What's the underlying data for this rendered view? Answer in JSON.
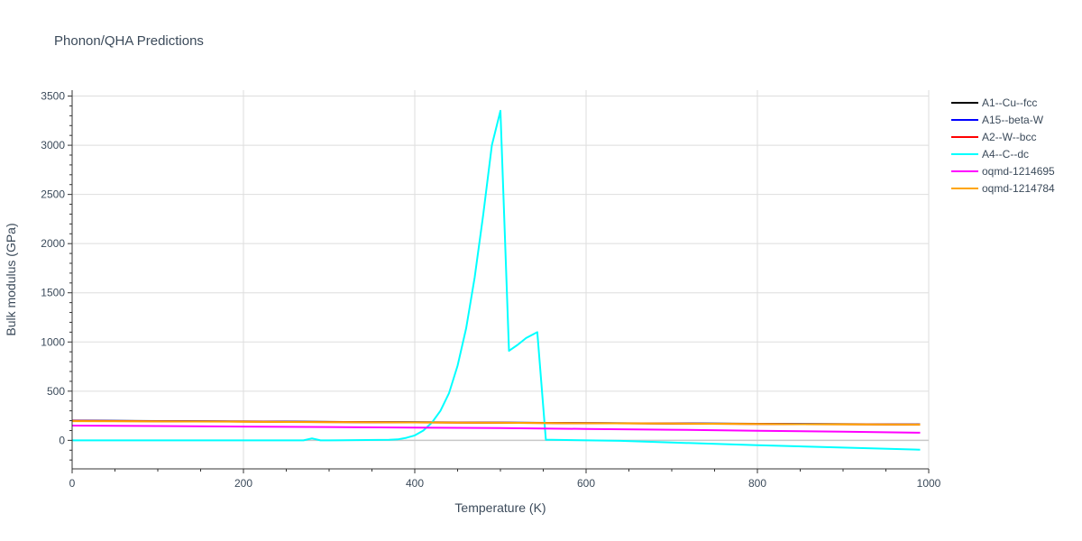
{
  "chart_data": {
    "type": "line",
    "title": "Phonon/QHA Predictions",
    "xlabel": "Temperature (K)",
    "ylabel": "Bulk modulus (GPa)",
    "xlim": [
      0,
      1000
    ],
    "ylim": [
      -290,
      3560
    ],
    "x_ticks": [
      0,
      200,
      400,
      600,
      800,
      1000
    ],
    "y_ticks": [
      0,
      500,
      1000,
      1500,
      2000,
      2500,
      3000,
      3500
    ],
    "grid": true,
    "legend_position": "right",
    "series": [
      {
        "name": "A1--Cu--fcc",
        "color": "#000000",
        "x": [
          0,
          100,
          200,
          300,
          400,
          500,
          600,
          700,
          800,
          900,
          990
        ],
        "y": [
          200,
          196,
          192,
          188,
          184,
          180,
          176,
          172,
          168,
          165,
          162
        ]
      },
      {
        "name": "A15--beta-W",
        "color": "#0000ff",
        "x": [
          0,
          100,
          200,
          300,
          400,
          500,
          600,
          700,
          800,
          900,
          990
        ],
        "y": [
          199,
          195,
          191,
          187,
          183,
          179,
          175,
          171,
          167,
          164,
          161
        ]
      },
      {
        "name": "A2--W--bcc",
        "color": "#ff0000",
        "x": [
          0,
          100,
          200,
          300,
          400,
          500,
          600,
          700,
          800,
          900,
          990
        ],
        "y": [
          198,
          194,
          190,
          186,
          182,
          178,
          174,
          170,
          166,
          163,
          160
        ]
      },
      {
        "name": "A4--C--dc",
        "color": "#00ffff",
        "x": [
          0,
          100,
          200,
          270,
          280,
          290,
          300,
          370,
          380,
          390,
          400,
          410,
          420,
          430,
          440,
          450,
          460,
          470,
          480,
          490,
          500,
          510,
          520,
          530,
          543,
          553,
          560,
          640,
          800,
          990
        ],
        "y": [
          0,
          0,
          0,
          0,
          20,
          0,
          0,
          5,
          10,
          25,
          50,
          100,
          180,
          300,
          480,
          760,
          1140,
          1660,
          2300,
          3000,
          3350,
          910,
          970,
          1040,
          1100,
          5,
          5,
          -5,
          -50,
          -95
        ]
      },
      {
        "name": "oqmd-1214695",
        "color": "#ff00ff",
        "x": [
          0,
          100,
          200,
          300,
          400,
          500,
          600,
          700,
          800,
          900,
          990
        ],
        "y": [
          150,
          145,
          140,
          135,
          130,
          124,
          116,
          108,
          98,
          88,
          78
        ]
      },
      {
        "name": "oqmd-1214784",
        "color": "#ffa500",
        "x": [
          0,
          100,
          200,
          300,
          400,
          500,
          600,
          700,
          800,
          900,
          990
        ],
        "y": [
          195,
          192,
          189,
          185,
          182,
          178,
          174,
          170,
          166,
          163,
          160
        ]
      }
    ]
  }
}
